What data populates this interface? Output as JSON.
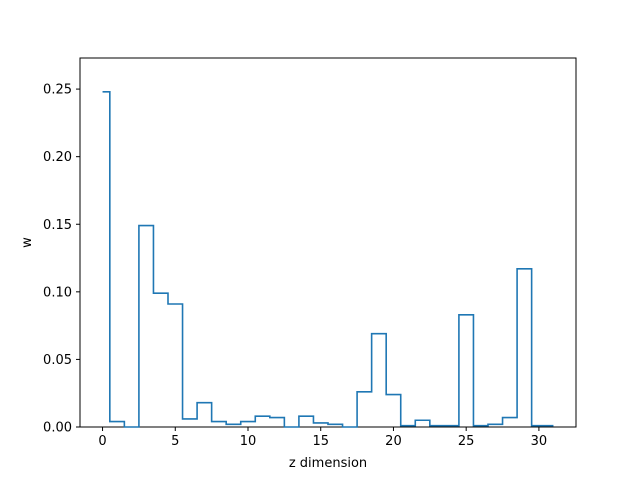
{
  "chart_data": {
    "type": "line",
    "style": "step (mid)",
    "title": "",
    "xlabel": "z dimension",
    "ylabel": "w",
    "xlim": [
      -1.55,
      32.55
    ],
    "ylim": [
      0.0,
      0.273
    ],
    "grid": false,
    "line_color": "#1f77b4",
    "xticks": [
      0,
      5,
      10,
      15,
      20,
      25,
      30
    ],
    "xtick_labels": [
      "0",
      "5",
      "10",
      "15",
      "20",
      "25",
      "30"
    ],
    "yticks": [
      0.0,
      0.05,
      0.1,
      0.15,
      0.2,
      0.25
    ],
    "ytick_labels": [
      "0.00",
      "0.05",
      "0.10",
      "0.15",
      "0.20",
      "0.25"
    ],
    "x": [
      0,
      1,
      2,
      3,
      4,
      5,
      6,
      7,
      8,
      9,
      10,
      11,
      12,
      13,
      14,
      15,
      16,
      17,
      18,
      19,
      20,
      21,
      22,
      23,
      24,
      25,
      26,
      27,
      28,
      29,
      30,
      31
    ],
    "values": [
      0.248,
      0.004,
      0.0,
      0.149,
      0.099,
      0.091,
      0.006,
      0.018,
      0.004,
      0.002,
      0.004,
      0.008,
      0.007,
      0.0,
      0.008,
      0.003,
      0.002,
      0.0,
      0.026,
      0.069,
      0.024,
      0.001,
      0.005,
      0.001,
      0.001,
      0.083,
      0.001,
      0.002,
      0.007,
      0.117,
      0.001,
      0.001
    ]
  }
}
